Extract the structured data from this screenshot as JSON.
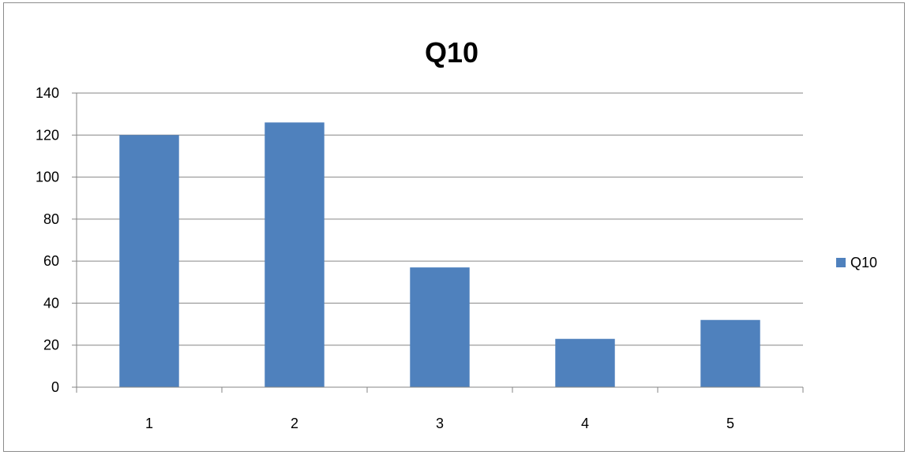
{
  "chart_data": {
    "type": "bar",
    "title": "Q10",
    "xlabel": "",
    "ylabel": "",
    "categories": [
      "1",
      "2",
      "3",
      "4",
      "5"
    ],
    "series": [
      {
        "name": "Q10",
        "values": [
          120,
          126,
          57,
          23,
          32
        ]
      }
    ],
    "ylim": [
      0,
      140
    ],
    "yticks": [
      0,
      20,
      40,
      60,
      80,
      100,
      120,
      140
    ],
    "grid": true,
    "legend": "right",
    "colors": {
      "bar": "#4f81bd",
      "grid": "#868686",
      "axis": "#868686"
    }
  }
}
